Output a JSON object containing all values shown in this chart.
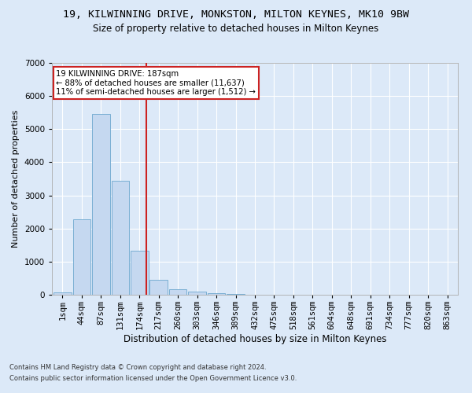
{
  "title_line1": "19, KILWINNING DRIVE, MONKSTON, MILTON KEYNES, MK10 9BW",
  "title_line2": "Size of property relative to detached houses in Milton Keynes",
  "xlabel": "Distribution of detached houses by size in Milton Keynes",
  "ylabel": "Number of detached properties",
  "footnote1": "Contains HM Land Registry data © Crown copyright and database right 2024.",
  "footnote2": "Contains public sector information licensed under the Open Government Licence v3.0.",
  "bar_labels": [
    "1sqm",
    "44sqm",
    "87sqm",
    "131sqm",
    "174sqm",
    "217sqm",
    "260sqm",
    "303sqm",
    "346sqm",
    "389sqm",
    "432sqm",
    "475sqm",
    "518sqm",
    "561sqm",
    "604sqm",
    "648sqm",
    "691sqm",
    "734sqm",
    "777sqm",
    "820sqm",
    "863sqm"
  ],
  "bar_values": [
    75,
    2280,
    5450,
    3450,
    1320,
    460,
    165,
    90,
    55,
    30,
    5,
    0,
    0,
    0,
    0,
    0,
    0,
    0,
    0,
    0,
    0
  ],
  "bar_color": "#c5d8f0",
  "bar_edgecolor": "#7aafd4",
  "vline_x": 4.35,
  "vline_color": "#cc2222",
  "annotation_text": "19 KILWINNING DRIVE: 187sqm\n← 88% of detached houses are smaller (11,637)\n11% of semi-detached houses are larger (1,512) →",
  "annotation_box_color": "#ffffff",
  "annotation_box_edgecolor": "#cc2222",
  "ylim": [
    0,
    7000
  ],
  "yticks": [
    0,
    1000,
    2000,
    3000,
    4000,
    5000,
    6000,
    7000
  ],
  "background_color": "#dce9f8",
  "grid_color": "#ffffff",
  "title_fontsize": 9.5,
  "subtitle_fontsize": 8.5,
  "axis_label_fontsize": 8,
  "tick_fontsize": 7.5,
  "footnote_fontsize": 6.0
}
